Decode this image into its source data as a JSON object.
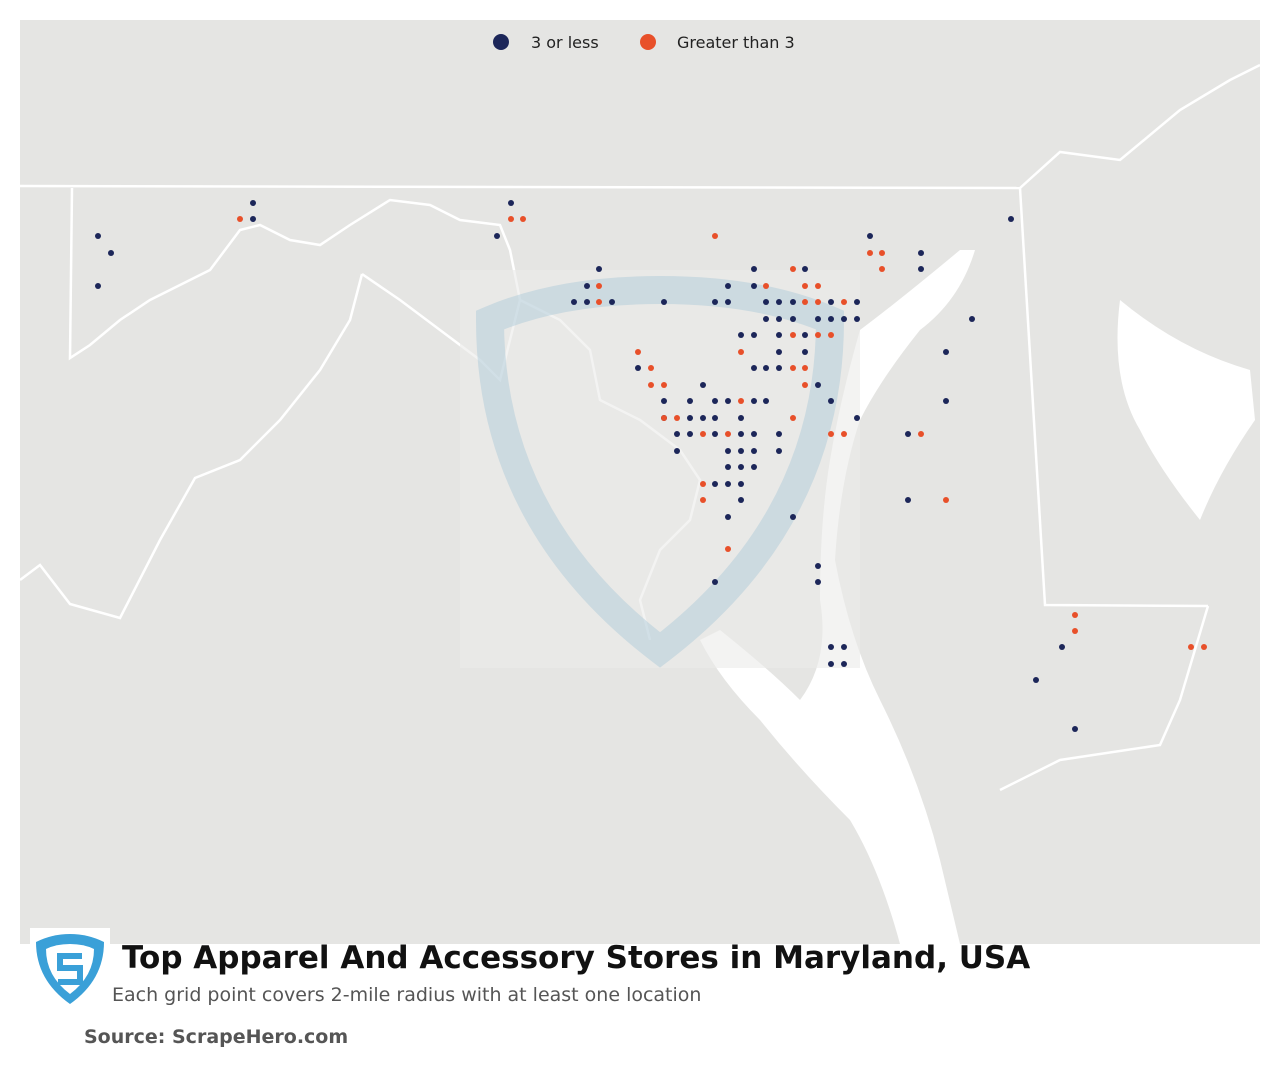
{
  "legend": {
    "series": [
      {
        "name": "3 or less",
        "color": "#1c2659"
      },
      {
        "name": "Greater than 3",
        "color": "#e8502a"
      }
    ]
  },
  "footer": {
    "title": "Top Apparel And Accessory Stores in Maryland, USA",
    "subtitle": "Each grid point covers 2-mile radius with at least one location",
    "source": "Source: ScrapeHero.com"
  }
}
